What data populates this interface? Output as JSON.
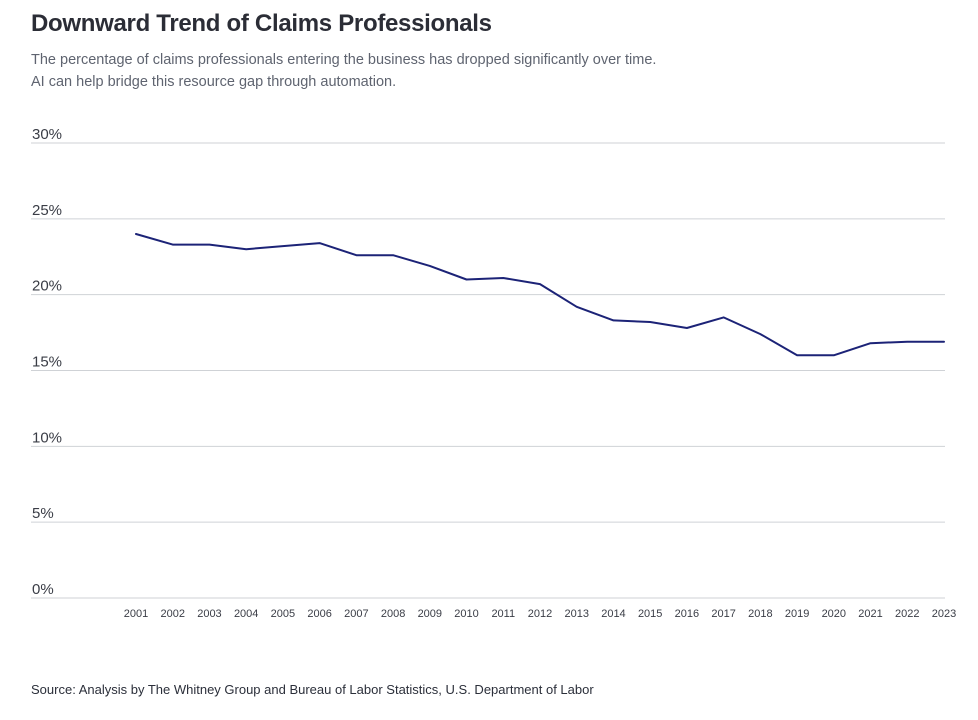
{
  "header": {
    "title": "Downward Trend of Claims Professionals",
    "subtitle_line1": "The percentage of claims professionals entering the business has dropped significantly over time.",
    "subtitle_line2": "AI can help bridge this resource gap through automation."
  },
  "footer": {
    "source": "Source: Analysis by The Whitney Group and Bureau of Labor Statistics, U.S. Department of Labor"
  },
  "colors": {
    "line": "#1c2377",
    "grid": "#cfd2d6",
    "tick_text": "#3a3d46"
  },
  "chart_data": {
    "type": "line",
    "title": "Downward Trend of Claims Professionals",
    "xlabel": "",
    "ylabel": "",
    "ylim": [
      0,
      30
    ],
    "yticks": [
      0,
      5,
      10,
      15,
      20,
      25,
      30
    ],
    "ytick_labels": [
      "0%",
      "5%",
      "10%",
      "15%",
      "20%",
      "25%",
      "30%"
    ],
    "grid": "horizontal",
    "legend": "none",
    "categories": [
      "2001",
      "2002",
      "2003",
      "2004",
      "2005",
      "2006",
      "2007",
      "2008",
      "2009",
      "2010",
      "2011",
      "2012",
      "2013",
      "2014",
      "2015",
      "2016",
      "2017",
      "2018",
      "2019",
      "2020",
      "2021",
      "2022",
      "2023"
    ],
    "series": [
      {
        "values": [
          24.0,
          23.3,
          23.3,
          23.0,
          23.2,
          23.4,
          22.6,
          22.6,
          21.9,
          21.0,
          21.1,
          20.7,
          19.2,
          18.3,
          18.2,
          17.8,
          18.5,
          17.4,
          16.0,
          16.0,
          16.8,
          16.9,
          16.9
        ]
      }
    ]
  }
}
